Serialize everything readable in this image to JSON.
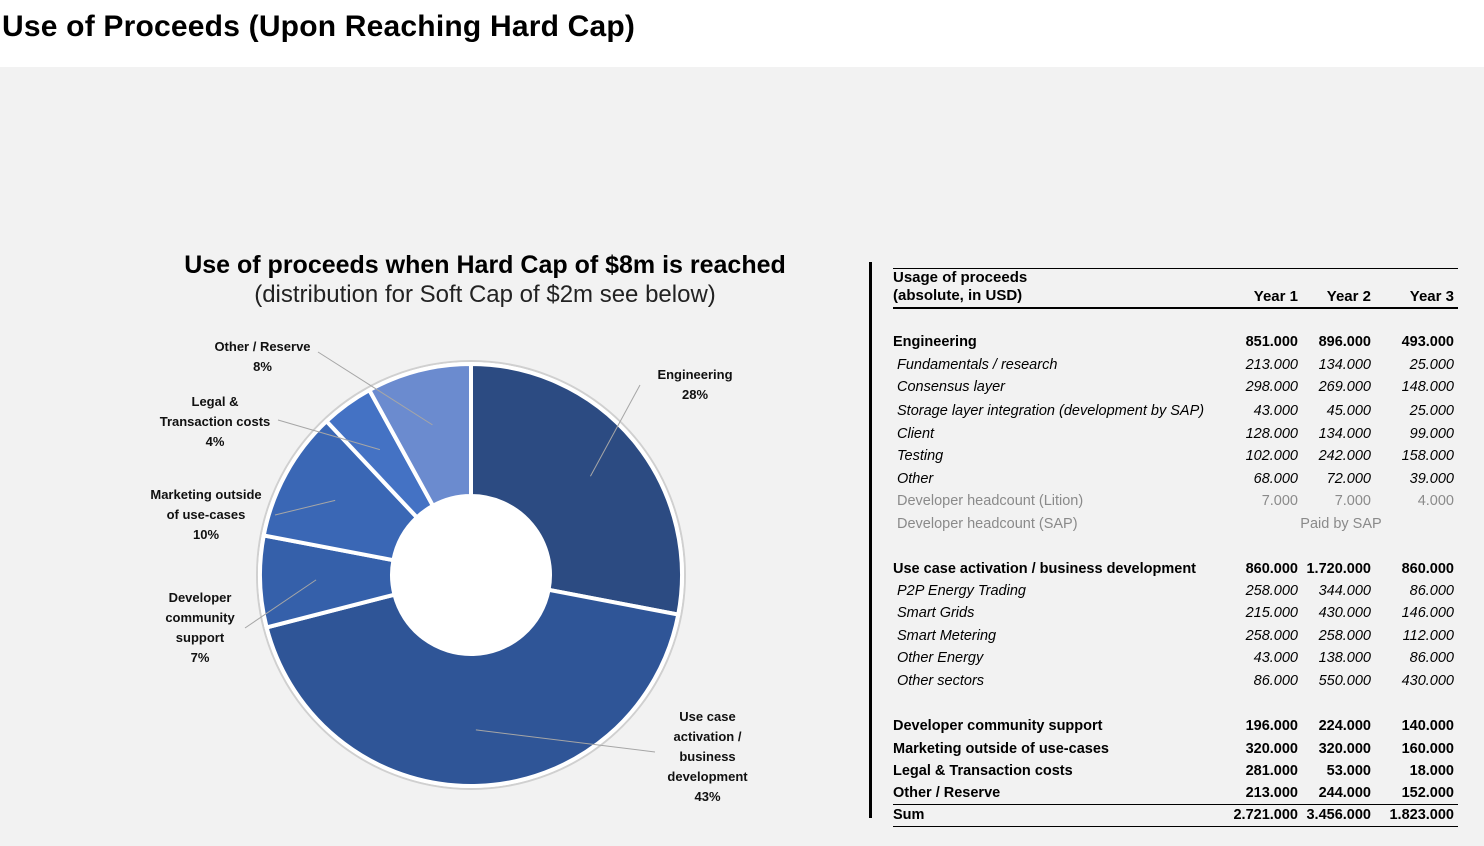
{
  "page": {
    "title": "Use of Proceeds (Upon Reaching Hard Cap)"
  },
  "chart_data": {
    "type": "pie",
    "donut": true,
    "title": "Use of proceeds when Hard Cap of $8m is reached",
    "subtitle": "(distribution for Soft Cap of $2m see below)",
    "categories": [
      "Engineering",
      "Use case activation / business development",
      "Developer community support",
      "Marketing outside of use-cases",
      "Legal & Transaction costs",
      "Other / Reserve"
    ],
    "values": [
      28,
      43,
      7,
      10,
      4,
      8
    ],
    "labels": [
      {
        "name": "Engineering",
        "pct": "28%"
      },
      {
        "name": "Use case activation / business development",
        "pct": "43%"
      },
      {
        "name": "Developer community support",
        "pct": "7%"
      },
      {
        "name": "Marketing outside of use-cases",
        "pct": "10%"
      },
      {
        "name": "Legal & Transaction costs",
        "pct": "4%"
      },
      {
        "name": "Other / Reserve",
        "pct": "8%"
      }
    ],
    "label_lines": {
      "engineering": "Engineering",
      "usecase_1": "Use case",
      "usecase_2": "activation /",
      "usecase_3": "business",
      "usecase_4": "development",
      "devcomm_1": "Developer",
      "devcomm_2": "community",
      "devcomm_3": "support",
      "marketing_1": "Marketing outside",
      "marketing_2": "of use-cases",
      "legal_1": "Legal &",
      "legal_2": "Transaction costs",
      "other_1": "Other / Reserve"
    },
    "colors": [
      "#2c4b82",
      "#2f5597",
      "#3560aa",
      "#3a67b5",
      "#4472c4",
      "#6b8bcf"
    ]
  },
  "table": {
    "header_line1": "Usage of proceeds",
    "header_line2": "(absolute, in USD)",
    "years": [
      "Year  1",
      "Year 2",
      "Year 3"
    ],
    "engineering": {
      "label": "Engineering",
      "values": [
        "851.000",
        "896.000",
        "493.000"
      ],
      "items": [
        {
          "label": "Fundamentals / research",
          "values": [
            "213.000",
            "134.000",
            "25.000"
          ]
        },
        {
          "label": "Consensus layer",
          "values": [
            "298.000",
            "269.000",
            "148.000"
          ]
        },
        {
          "label": "Storage layer integration (development by SAP)",
          "values": [
            "43.000",
            "45.000",
            "25.000"
          ]
        },
        {
          "label": "Client",
          "values": [
            "128.000",
            "134.000",
            "99.000"
          ]
        },
        {
          "label": "Testing",
          "values": [
            "102.000",
            "242.000",
            "158.000"
          ]
        },
        {
          "label": "Other",
          "values": [
            "68.000",
            "72.000",
            "39.000"
          ]
        }
      ],
      "headcount_lition": {
        "label": "Developer headcount (Lition)",
        "values": [
          "7.000",
          "7.000",
          "4.000"
        ]
      },
      "headcount_sap": {
        "label": "Developer headcount (SAP)",
        "note": "Paid by SAP"
      }
    },
    "usecase": {
      "label": "Use case activation / business development",
      "values": [
        "860.000",
        "1.720.000",
        "860.000"
      ],
      "items": [
        {
          "label": "P2P Energy Trading",
          "values": [
            "258.000",
            "344.000",
            "86.000"
          ]
        },
        {
          "label": "Smart Grids",
          "values": [
            "215.000",
            "430.000",
            "146.000"
          ]
        },
        {
          "label": "Smart Metering",
          "values": [
            "258.000",
            "258.000",
            "112.000"
          ]
        },
        {
          "label": "Other Energy",
          "values": [
            "43.000",
            "138.000",
            "86.000"
          ]
        },
        {
          "label": "Other sectors",
          "values": [
            "86.000",
            "550.000",
            "430.000"
          ]
        }
      ]
    },
    "others": [
      {
        "label": "Developer community support",
        "values": [
          "196.000",
          "224.000",
          "140.000"
        ]
      },
      {
        "label": "Marketing outside of use-cases",
        "values": [
          "320.000",
          "320.000",
          "160.000"
        ]
      },
      {
        "label": "Legal & Transaction costs",
        "values": [
          "281.000",
          "53.000",
          "18.000"
        ]
      },
      {
        "label": "Other / Reserve",
        "values": [
          "213.000",
          "244.000",
          "152.000"
        ]
      }
    ],
    "sum": {
      "label": "Sum",
      "values": [
        "2.721.000",
        "3.456.000",
        "1.823.000"
      ]
    }
  }
}
